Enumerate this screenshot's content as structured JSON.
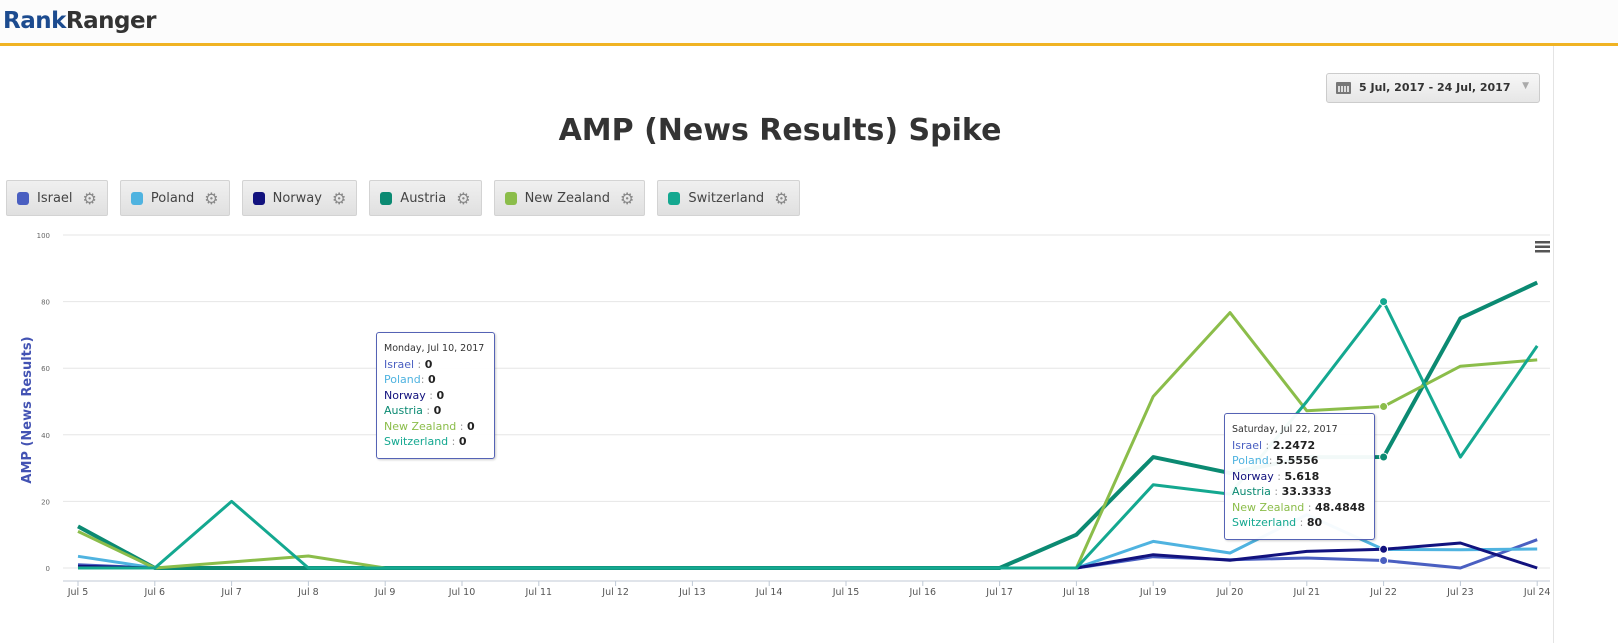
{
  "header": {
    "logo_part1": "Rank",
    "logo_part2": "Ranger"
  },
  "date_range": {
    "label": "5 Jul, 2017 - 24 Jul, 2017",
    "icon": "calendar-icon"
  },
  "menu_icon": "hamburger-menu-icon",
  "chart_data": {
    "type": "line",
    "title": "AMP (News Results) Spike",
    "ylabel": "AMP (News Results)",
    "xlabel": "",
    "ylim": [
      0,
      100
    ],
    "yticks": [
      "0",
      "20",
      "40",
      "60",
      "80",
      "100"
    ],
    "grid": true,
    "legend_placement": "top-left",
    "categories": [
      "Jul 5",
      "Jul 6",
      "Jul 7",
      "Jul 8",
      "Jul 9",
      "Jul 10",
      "Jul 11",
      "Jul 12",
      "Jul 13",
      "Jul 14",
      "Jul 15",
      "Jul 16",
      "Jul 17",
      "Jul 18",
      "Jul 19",
      "Jul 20",
      "Jul 21",
      "Jul 22",
      "Jul 23",
      "Jul 24"
    ],
    "series": [
      {
        "name": "Israel",
        "color": "#4a5fc1",
        "values": [
          1,
          0,
          0,
          0,
          0,
          0,
          0,
          0,
          0,
          0,
          0,
          0,
          0,
          0,
          3.4,
          2.5,
          3,
          2.2472,
          0,
          8.5
        ]
      },
      {
        "name": "Poland",
        "color": "#4fb3e0",
        "values": [
          3.5,
          0,
          0,
          0,
          0,
          0,
          0,
          0,
          0,
          0,
          0,
          0,
          0,
          0,
          8,
          4.5,
          16,
          5.5556,
          5.5,
          5.7
        ]
      },
      {
        "name": "Norway",
        "color": "#12127e",
        "values": [
          0.5,
          0,
          0,
          0,
          0,
          0,
          0,
          0,
          0,
          0,
          0,
          0,
          0,
          0,
          4,
          2.3,
          5,
          5.618,
          7.5,
          0
        ]
      },
      {
        "name": "Austria",
        "color": "#0b8a72",
        "values": [
          12.5,
          0,
          0,
          0,
          0,
          0,
          0,
          0,
          0,
          0,
          0,
          0,
          0,
          10,
          33.3,
          28.5,
          33.3,
          33.3333,
          75,
          85.7
        ]
      },
      {
        "name": "New Zealand",
        "color": "#8bbd4a",
        "values": [
          11,
          0,
          1.8,
          3.6,
          0,
          0,
          0,
          0,
          0,
          0,
          0,
          0,
          0,
          0,
          51.5,
          76.7,
          47.2,
          48.4848,
          60.6,
          62.5
        ]
      },
      {
        "name": "Switzerland",
        "color": "#14a890",
        "values": [
          0,
          0,
          20,
          0,
          0,
          0,
          0,
          0,
          0,
          0,
          0,
          0,
          0,
          0,
          25,
          22.2,
          50,
          80,
          33.3,
          66.7
        ]
      }
    ],
    "tooltips": [
      {
        "header": "Monday, Jul 10, 2017",
        "rows": [
          {
            "name": "Israel",
            "sep": " : ",
            "value": "0"
          },
          {
            "name": "Poland",
            "sep": ": ",
            "value": "0"
          },
          {
            "name": "Norway",
            "sep": " : ",
            "value": "0"
          },
          {
            "name": "Austria",
            "sep": " : ",
            "value": "0"
          },
          {
            "name": "New Zealand",
            "sep": " : ",
            "value": "0"
          },
          {
            "name": "Switzerland",
            "sep": " : ",
            "value": "0"
          }
        ]
      },
      {
        "header": "Saturday, Jul 22, 2017",
        "rows": [
          {
            "name": "Israel",
            "sep": " : ",
            "value": "2.2472"
          },
          {
            "name": "Poland",
            "sep": ": ",
            "value": "5.5556"
          },
          {
            "name": "Norway",
            "sep": " : ",
            "value": "5.618"
          },
          {
            "name": "Austria",
            "sep": " : ",
            "value": "33.3333"
          },
          {
            "name": "New Zealand",
            "sep": " : ",
            "value": "48.4848"
          },
          {
            "name": "Switzerland",
            "sep": " : ",
            "value": "80"
          }
        ]
      }
    ]
  }
}
